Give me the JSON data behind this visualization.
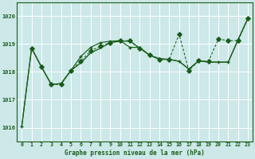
{
  "bg_color": "#cce8e8",
  "grid_color": "#b0d4d4",
  "line_color": "#1a5c1a",
  "xlabel": "Graphe pression niveau de la mer (hPa)",
  "ylim": [
    1015.5,
    1020.5
  ],
  "xlim": [
    -0.5,
    23.5
  ],
  "yticks": [
    1016,
    1017,
    1018,
    1019,
    1020
  ],
  "xticks": [
    0,
    1,
    2,
    3,
    4,
    5,
    6,
    7,
    8,
    9,
    10,
    11,
    12,
    13,
    14,
    15,
    16,
    17,
    18,
    19,
    20,
    21,
    22,
    23
  ],
  "hours": [
    0,
    1,
    2,
    3,
    4,
    5,
    6,
    7,
    8,
    9,
    10,
    11,
    12,
    13,
    14,
    15,
    16,
    17,
    18,
    19,
    20,
    21,
    22,
    23
  ],
  "line1_y": [
    1016.05,
    1018.85,
    1018.18,
    1017.55,
    1017.58,
    1018.05,
    1018.32,
    1018.68,
    1018.85,
    1019.05,
    1019.1,
    1019.1,
    1018.85,
    1018.6,
    1018.45,
    1018.45,
    1018.38,
    1018.1,
    1018.4,
    1018.35,
    1018.35,
    1018.35,
    1019.15,
    1019.92
  ],
  "line2_y": [
    1016.05,
    1018.85,
    1018.18,
    1017.55,
    1017.58,
    1018.05,
    1018.55,
    1018.88,
    1019.05,
    1019.1,
    1019.12,
    1018.88,
    1018.88,
    1018.6,
    1018.48,
    1018.45,
    1018.38,
    1018.1,
    1018.4,
    1018.35,
    1018.35,
    1018.35,
    1019.15,
    1019.92
  ],
  "line3_x": [
    1,
    2,
    3,
    4,
    5,
    6,
    7,
    8,
    9,
    10,
    11,
    12,
    13,
    14,
    15,
    16,
    17,
    18,
    19,
    20,
    21,
    22,
    23
  ],
  "line3_y": [
    1018.85,
    1018.18,
    1017.55,
    1017.55,
    1018.05,
    1018.38,
    1018.75,
    1018.92,
    1019.05,
    1019.12,
    1019.12,
    1018.85,
    1018.6,
    1018.45,
    1018.45,
    1019.35,
    1018.05,
    1018.4,
    1018.38,
    1019.18,
    1019.12,
    1019.12,
    1019.92
  ]
}
